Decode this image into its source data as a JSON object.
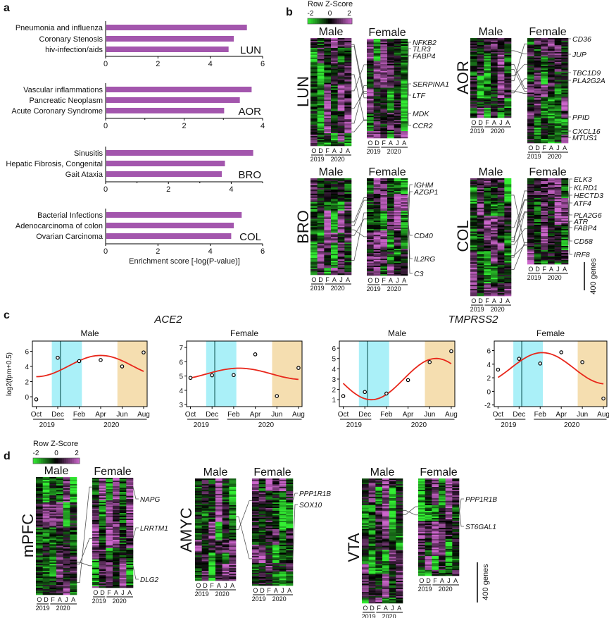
{
  "panel_labels": {
    "a": "a",
    "b": "b",
    "c": "c",
    "d": "d"
  },
  "colorbar": {
    "title": "Row Z-Score",
    "ticks": [
      "-2",
      "0",
      "2"
    ],
    "low_color": "#33ee33",
    "mid_color": "#000000",
    "high_color": "#cc66cc"
  },
  "sex_labels": {
    "male": "Male",
    "female": "Female"
  },
  "heatmap_months": [
    "O",
    "D",
    "F",
    "A",
    "J",
    "A"
  ],
  "years": [
    "2019",
    "2020"
  ],
  "scale_bar_label": "400 genes",
  "chart_data": [
    {
      "type": "bar",
      "panel": "a",
      "orientation": "horizontal",
      "xlabel": "Enrichment score [-log(P-value)]",
      "bar_color": "#a356ad",
      "groups": [
        {
          "tissue": "LUN",
          "xlim": [
            0,
            6
          ],
          "ticks": [
            0,
            2,
            4,
            6
          ],
          "minor_ticks": [],
          "categories": [
            "Pneumonia and influenza",
            "Coronary Stenosis",
            "hiv-infection/aids"
          ],
          "values": [
            5.4,
            4.9,
            4.7
          ]
        },
        {
          "tissue": "AOR",
          "xlim": [
            0,
            4
          ],
          "ticks": [
            0,
            2,
            4
          ],
          "minor_ticks": [
            1,
            3
          ],
          "categories": [
            "Vascular inflammations",
            "Pancreatic Neoplasm",
            "Acute Coronary Syndrome"
          ],
          "values": [
            3.72,
            3.42,
            3.02
          ]
        },
        {
          "tissue": "BRO",
          "xlim": [
            0,
            5
          ],
          "ticks": [
            0,
            2,
            4
          ],
          "minor_ticks": [
            1,
            3,
            5
          ],
          "categories": [
            "Sinusitis",
            "Hepatic Fibrosis, Congenital",
            "Gait Ataxia"
          ],
          "values": [
            4.7,
            3.8,
            3.7
          ]
        },
        {
          "tissue": "COL",
          "xlim": [
            0,
            6
          ],
          "ticks": [
            0,
            2,
            4,
            6
          ],
          "minor_ticks": [],
          "categories": [
            "Bacterial Infections",
            "Adenocarcinoma of colon",
            "Ovarian Carcinoma"
          ],
          "values": [
            5.2,
            4.9,
            4.8
          ]
        }
      ]
    },
    {
      "type": "scatter",
      "panel": "c",
      "ylabel": "log2(fpm+0.5)",
      "x_tick_labels": [
        "Oct",
        "Dec",
        "Feb",
        "Apr",
        "Jun",
        "Aug"
      ],
      "x_months_since_oct2019": [
        0,
        2,
        4,
        6,
        8,
        10
      ],
      "year_labels": [
        "2019",
        "2020"
      ],
      "winter_band_months": [
        1.45,
        4.25
      ],
      "summer_band_months": [
        7.56,
        10.33
      ],
      "marker_month": 2.25,
      "winter_color": "#aaf0f8",
      "summer_color": "#f5deb0",
      "fit_color": "#e8261a",
      "plots": [
        {
          "gene": "ACE2",
          "sex": "Male",
          "ylim": [
            -1.3,
            7.35
          ],
          "yticks": [
            0,
            2,
            4,
            6
          ],
          "values": [
            -0.35,
            5.15,
            4.7,
            4.85,
            4.0,
            5.85
          ],
          "fit": {
            "mean": 4.05,
            "amplitude": 1.4,
            "peak_month": 6,
            "period": 12
          }
        },
        {
          "gene": "ACE2",
          "sex": "Female",
          "ylim": [
            2.86,
            7.45
          ],
          "yticks": [
            3,
            4,
            5,
            6,
            7
          ],
          "values": [
            4.87,
            5.05,
            5.07,
            6.52,
            3.6,
            5.57
          ],
          "fit": {
            "mean": 5.15,
            "amplitude": 0.4,
            "peak_month": 4.5,
            "period": 12
          }
        },
        {
          "gene": "TMPRSS2",
          "sex": "Male",
          "ylim": [
            0.33,
            6.69
          ],
          "yticks": [
            1,
            2,
            3,
            4,
            5,
            6
          ],
          "values": [
            1.35,
            1.75,
            1.6,
            2.9,
            4.65,
            5.7
          ],
          "fit": {
            "mean": 3.0,
            "amplitude": 2.0,
            "peak_month": 8.6,
            "period": 12
          }
        },
        {
          "gene": "TMPRSS2",
          "sex": "Female",
          "ylim": [
            -2.24,
            7.4
          ],
          "yticks": [
            -2,
            0,
            2,
            4,
            6
          ],
          "values": [
            3.2,
            4.8,
            4.1,
            5.75,
            4.3,
            -1.05
          ],
          "fit": {
            "mean": 3.4,
            "amplitude": 2.3,
            "peak_month": 4.2,
            "period": 12
          }
        }
      ]
    }
  ],
  "panel_b": {
    "tissues": [
      {
        "name": "LUN",
        "genes": [
          "NFKB2",
          "TLR3",
          "FABP4",
          "SERPINA1",
          "LTF",
          "MDK",
          "CCR2"
        ]
      },
      {
        "name": "AOR",
        "genes": [
          "CD36",
          "JUP",
          "TBC1D9",
          "PLA2G2A",
          "PPID",
          "CXCL16",
          "MTUS1"
        ]
      },
      {
        "name": "BRO",
        "genes": [
          "IGHM",
          "AZGP1",
          "CD40",
          "IL2RG",
          "C3"
        ]
      },
      {
        "name": "COL",
        "genes": [
          "ELK3",
          "KLRD1",
          "HECTD3",
          "ATF4",
          "PLA2G6",
          "ATR",
          "FABP4",
          "CD58",
          "IRF8"
        ]
      }
    ]
  },
  "panel_d": {
    "regions": [
      {
        "name": "mPFC",
        "genes": [
          "NAPG",
          "LRRTM1",
          "DLG2"
        ]
      },
      {
        "name": "AMYC",
        "genes": [
          "PPP1R1B",
          "SOX10"
        ]
      },
      {
        "name": "VTA",
        "genes": [
          "PPP1R1B",
          "ST6GAL1"
        ]
      }
    ]
  }
}
